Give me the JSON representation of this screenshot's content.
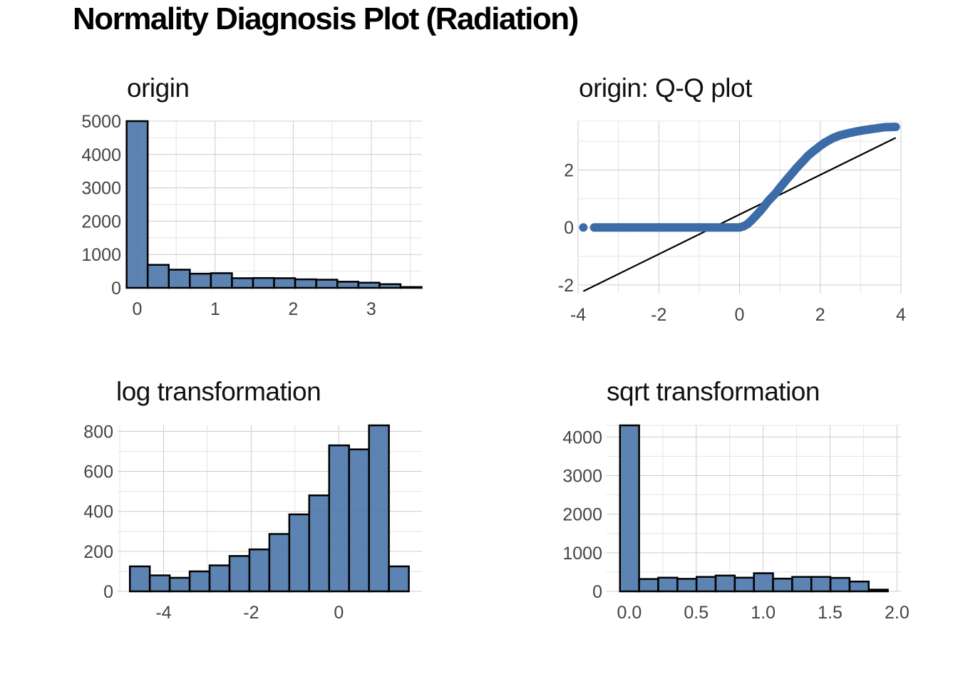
{
  "title": "Normality Diagnosis Plot (Radiation)",
  "colors": {
    "bar_fill": "#4a75a8",
    "bar_outline": "#000000",
    "points": "#3c6ca8",
    "line": "#000000",
    "grid": "#cccccc"
  },
  "chart_data": [
    {
      "id": "origin",
      "type": "bar",
      "title": "origin",
      "grid": true,
      "xlim": [
        -0.15,
        3.65
      ],
      "ylim": [
        0,
        5000
      ],
      "xticks": [
        0,
        1,
        2,
        3
      ],
      "yticks": [
        0,
        1000,
        2000,
        3000,
        4000,
        5000
      ],
      "bin_width": 0.27,
      "bin_start": -0.135,
      "values": [
        5000,
        690,
        545,
        425,
        440,
        290,
        295,
        290,
        255,
        245,
        185,
        155,
        110,
        25
      ]
    },
    {
      "id": "qq",
      "type": "scatter",
      "title": "origin: Q-Q plot",
      "grid": true,
      "xlim": [
        -4,
        4
      ],
      "ylim": [
        -2.3,
        3.7
      ],
      "xticks": [
        -4,
        -2,
        0,
        2,
        4
      ],
      "yticks": [
        -2,
        0,
        2
      ],
      "points": [
        [
          -3.87,
          0
        ],
        [
          -3.6,
          0
        ],
        [
          -3.4,
          0
        ],
        [
          -3,
          0
        ],
        [
          -2.5,
          0
        ],
        [
          -2,
          0
        ],
        [
          -1.5,
          0
        ],
        [
          -1,
          0
        ],
        [
          -0.5,
          0
        ],
        [
          0,
          0
        ],
        [
          0.1,
          0.04
        ],
        [
          0.2,
          0.12
        ],
        [
          0.3,
          0.25
        ],
        [
          0.4,
          0.4
        ],
        [
          0.5,
          0.55
        ],
        [
          0.6,
          0.72
        ],
        [
          0.7,
          0.9
        ],
        [
          0.8,
          1.05
        ],
        [
          0.9,
          1.2
        ],
        [
          1,
          1.38
        ],
        [
          1.1,
          1.55
        ],
        [
          1.2,
          1.72
        ],
        [
          1.3,
          1.88
        ],
        [
          1.4,
          2.05
        ],
        [
          1.5,
          2.2
        ],
        [
          1.6,
          2.35
        ],
        [
          1.7,
          2.5
        ],
        [
          1.8,
          2.62
        ],
        [
          1.9,
          2.73
        ],
        [
          2,
          2.84
        ],
        [
          2.1,
          2.94
        ],
        [
          2.2,
          3.02
        ],
        [
          2.3,
          3.1
        ],
        [
          2.4,
          3.16
        ],
        [
          2.5,
          3.21
        ],
        [
          2.7,
          3.28
        ],
        [
          2.9,
          3.34
        ],
        [
          3.1,
          3.39
        ],
        [
          3.3,
          3.43
        ],
        [
          3.5,
          3.47
        ],
        [
          3.6,
          3.49
        ],
        [
          3.87,
          3.5
        ]
      ],
      "line": {
        "x": [
          -3.87,
          3.87
        ],
        "y": [
          -2.22,
          3.12
        ]
      }
    },
    {
      "id": "log",
      "type": "bar",
      "title": "log transformation",
      "grid": true,
      "xlim": [
        -5.05,
        1.9
      ],
      "ylim": [
        0,
        830
      ],
      "xticks": [
        -4,
        -2,
        0
      ],
      "yticks": [
        0,
        200,
        400,
        600,
        800
      ],
      "bin_width": 0.455,
      "bin_start": -4.77,
      "values": [
        125,
        80,
        68,
        100,
        130,
        177,
        210,
        287,
        385,
        480,
        730,
        710,
        830,
        125
      ]
    },
    {
      "id": "sqrt",
      "type": "bar",
      "title": "sqrt transformation",
      "grid": true,
      "xlim": [
        -0.17,
        2.03
      ],
      "ylim": [
        0,
        4300
      ],
      "xticks": [
        0.0,
        0.5,
        1.0,
        1.5,
        2.0
      ],
      "xtick_labels": [
        "0.0",
        "0.5",
        "1.0",
        "1.5",
        "2.0"
      ],
      "yticks": [
        0,
        1000,
        2000,
        3000,
        4000
      ],
      "bin_width": 0.143,
      "bin_start": -0.07,
      "values": [
        4300,
        320,
        355,
        325,
        375,
        410,
        355,
        470,
        330,
        375,
        375,
        350,
        255,
        45
      ]
    }
  ]
}
